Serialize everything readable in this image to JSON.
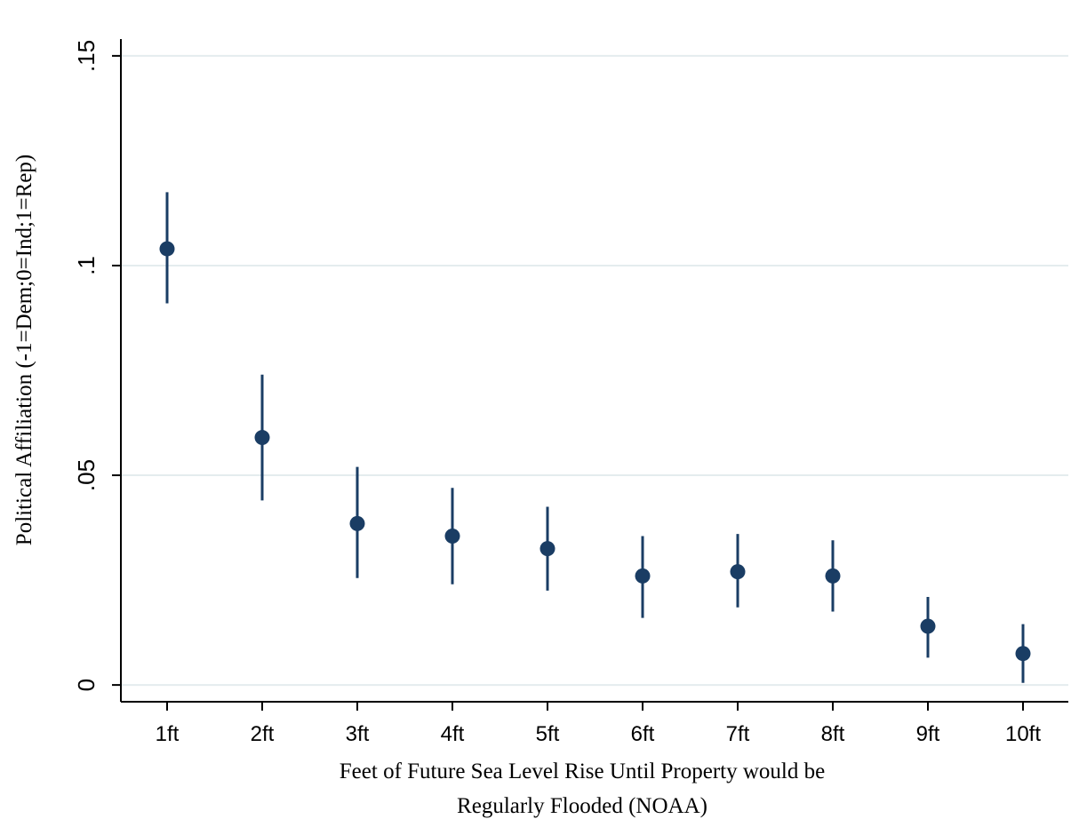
{
  "chart_data": {
    "type": "scatter",
    "categories": [
      "1ft",
      "2ft",
      "3ft",
      "4ft",
      "5ft",
      "6ft",
      "7ft",
      "8ft",
      "9ft",
      "10ft"
    ],
    "values": [
      0.104,
      0.059,
      0.0385,
      0.0355,
      0.0325,
      0.026,
      0.027,
      0.026,
      0.014,
      0.0075
    ],
    "ci_low": [
      0.091,
      0.044,
      0.0255,
      0.024,
      0.0225,
      0.016,
      0.0185,
      0.0175,
      0.0065,
      0.0005
    ],
    "ci_high": [
      0.1175,
      0.074,
      0.052,
      0.047,
      0.0425,
      0.0355,
      0.036,
      0.0345,
      0.021,
      0.0145
    ],
    "error_bars": true,
    "title": "",
    "xlabel_lines": [
      "Feet of Future Sea Level Rise Until Property would be",
      "Regularly Flooded (NOAA)"
    ],
    "ylabel": "Political Affiliation (-1=Dem;0=Ind;1=Rep)",
    "ylim": [
      -0.004,
      0.154
    ],
    "yticks": [
      0,
      0.05,
      0.1,
      0.15
    ],
    "ytick_labels": [
      "0",
      ".05",
      ".1",
      ".15"
    ],
    "grid": true,
    "marker_color": "#1a3d64",
    "grid_color": "#e4ecee"
  }
}
